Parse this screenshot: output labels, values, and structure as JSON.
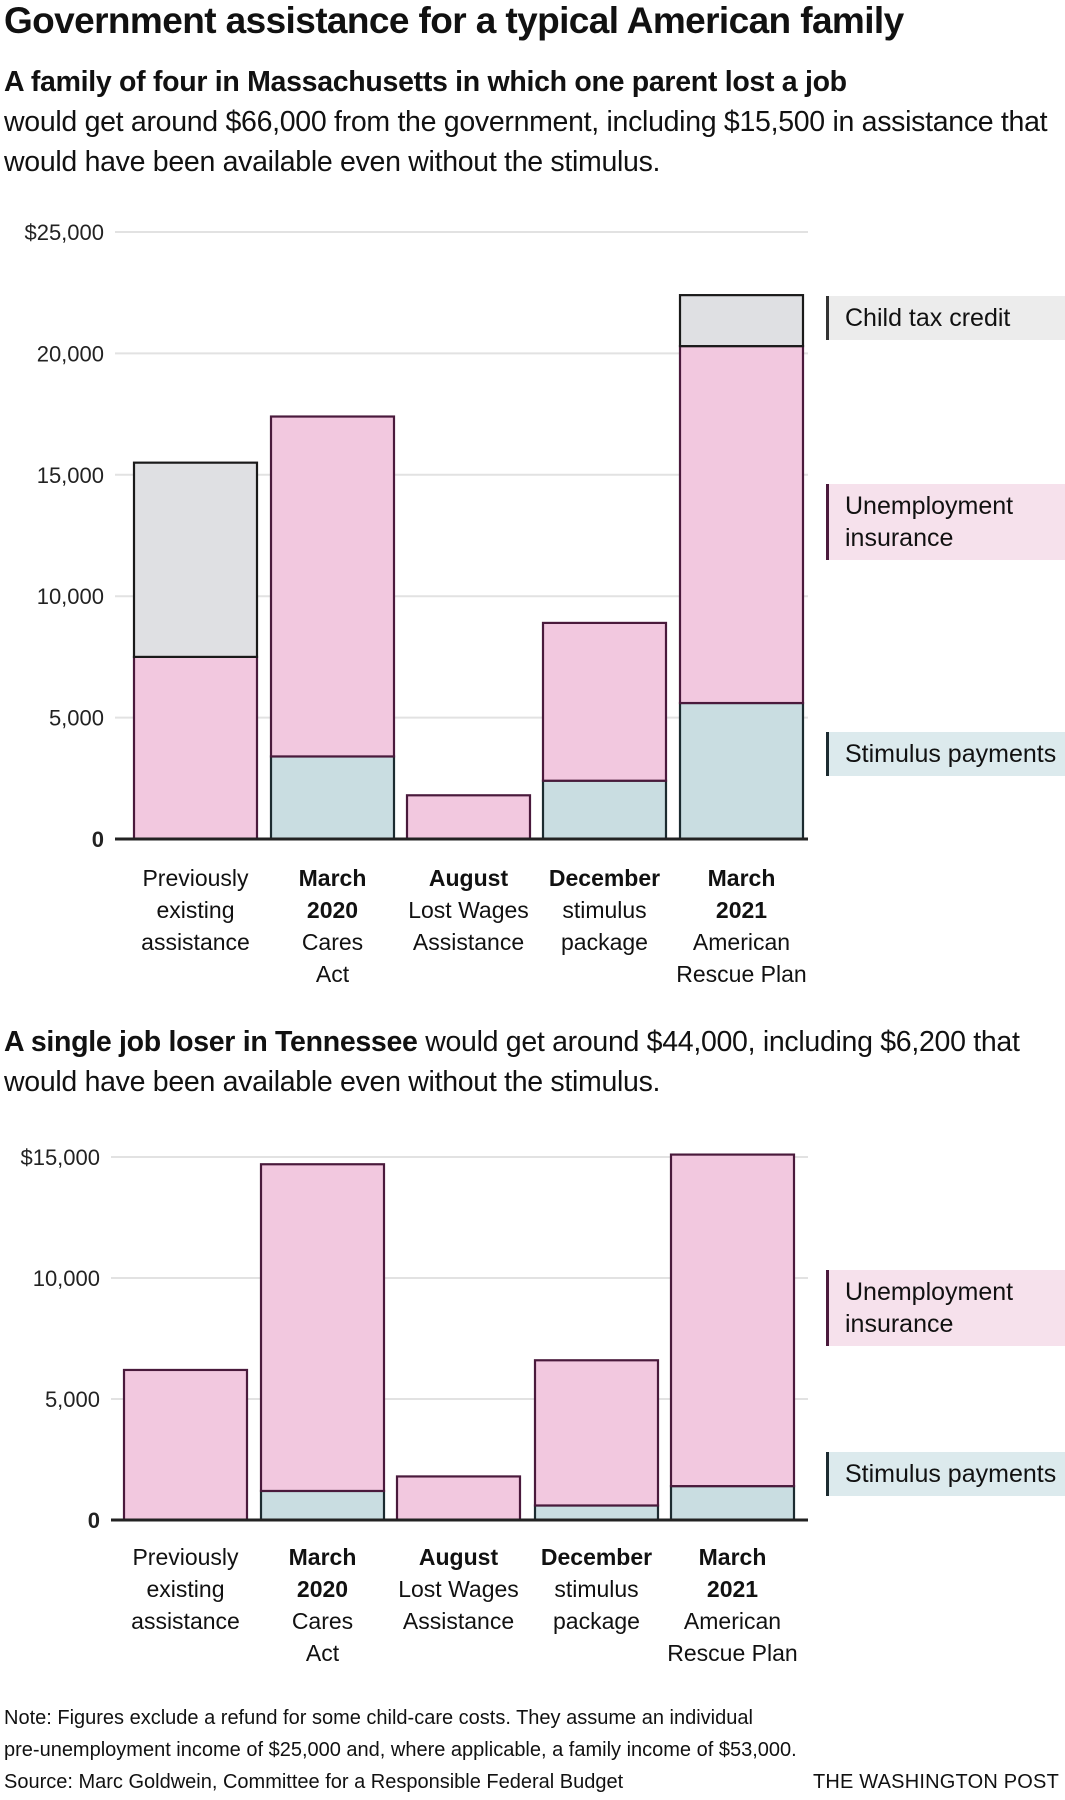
{
  "title": "Government assistance for a typical American family",
  "colors": {
    "unemployment": "#f2c8df",
    "unemployment_stroke": "#4a1a3c",
    "stimulus": "#c9dde1",
    "stimulus_stroke": "#1c2b30",
    "child_tax_credit": "#dfe0e3",
    "child_tax_credit_stroke": "#1a1a1a",
    "legend_unemployment_bg": "#f6e1ec",
    "legend_stimulus_bg": "#dceaed",
    "legend_ctc_bg": "#ececec",
    "gridline": "#e2e2e2"
  },
  "chart1": {
    "subtitle_bold": "A family of four in Massachusetts in which one parent lost a job",
    "subtitle_rest": "would get around $66,000 from the government, including $15,500 in assistance that would have been available even without the stimulus.",
    "legend": [
      {
        "key": "child_tax_credit",
        "label": "Child tax credit"
      },
      {
        "key": "unemployment",
        "label": "Unemployment insurance"
      },
      {
        "key": "stimulus",
        "label": "Stimulus payments"
      }
    ]
  },
  "chart2": {
    "subtitle_bold": "A single job loser in Tennessee",
    "subtitle_rest": " would get around $44,000, including $6,200 that would have been available even without the stimulus.",
    "legend": [
      {
        "key": "unemployment",
        "label": "Unemployment insurance"
      },
      {
        "key": "stimulus",
        "label": "Stimulus payments"
      }
    ]
  },
  "chart_data": [
    {
      "type": "bar",
      "stacked": true,
      "title": "A family of four in Massachusetts in which one parent lost a job",
      "xlabel": "",
      "ylabel": "",
      "ylim": [
        0,
        25000
      ],
      "yticks": [
        0,
        5000,
        10000,
        15000,
        20000,
        25000
      ],
      "ytick_labels": [
        "0",
        "5,000",
        "10,000",
        "15,000",
        "20,000",
        "$25,000"
      ],
      "grid": true,
      "legend_position": "right",
      "categories": [
        {
          "bold": "",
          "normal": "Previously existing assistance"
        },
        {
          "bold": "March 2020",
          "normal": "Cares Act"
        },
        {
          "bold": "August",
          "normal": "Lost Wages Assistance"
        },
        {
          "bold": "December",
          "normal": "stimulus package"
        },
        {
          "bold": "March 2021",
          "normal": "American Rescue Plan"
        }
      ],
      "category_lines": [
        [
          {
            "t": "Previously",
            "b": false
          },
          {
            "t": "existing",
            "b": false
          },
          {
            "t": "assistance",
            "b": false
          }
        ],
        [
          {
            "t": "March",
            "b": true
          },
          {
            "t": "2020",
            "b": true
          },
          {
            "t": "Cares",
            "b": false
          },
          {
            "t": "Act",
            "b": false
          }
        ],
        [
          {
            "t": "August",
            "b": true
          },
          {
            "t": "Lost Wages",
            "b": false
          },
          {
            "t": "Assistance",
            "b": false
          }
        ],
        [
          {
            "t": "December",
            "b": true
          },
          {
            "t": "stimulus",
            "b": false
          },
          {
            "t": "package",
            "b": false
          }
        ],
        [
          {
            "t": "March",
            "b": true
          },
          {
            "t": "2021",
            "b": true
          },
          {
            "t": "American",
            "b": false
          },
          {
            "t": "Rescue Plan",
            "b": false
          }
        ]
      ],
      "series": [
        {
          "name": "Stimulus payments",
          "key": "stimulus",
          "values": [
            0,
            3400,
            0,
            2400,
            5600
          ]
        },
        {
          "name": "Unemployment insurance",
          "key": "unemployment",
          "values": [
            7500,
            14000,
            1800,
            6500,
            14700
          ]
        },
        {
          "name": "Child tax credit / other",
          "key": "child_tax_credit",
          "values": [
            8000,
            0,
            0,
            0,
            2100
          ]
        }
      ]
    },
    {
      "type": "bar",
      "stacked": true,
      "title": "A single job loser in Tennessee",
      "xlabel": "",
      "ylabel": "",
      "ylim": [
        0,
        15000
      ],
      "yticks": [
        0,
        5000,
        10000,
        15000
      ],
      "ytick_labels": [
        "0",
        "5,000",
        "10,000",
        "$15,000"
      ],
      "grid": true,
      "legend_position": "right",
      "categories": [
        {
          "bold": "",
          "normal": "Previously existing assistance"
        },
        {
          "bold": "March 2020",
          "normal": "Cares Act"
        },
        {
          "bold": "August",
          "normal": "Lost Wages Assistance"
        },
        {
          "bold": "December",
          "normal": "stimulus package"
        },
        {
          "bold": "March 2021",
          "normal": "American Rescue Plan"
        }
      ],
      "category_lines": [
        [
          {
            "t": "Previously",
            "b": false
          },
          {
            "t": "existing",
            "b": false
          },
          {
            "t": "assistance",
            "b": false
          }
        ],
        [
          {
            "t": "March",
            "b": true
          },
          {
            "t": "2020",
            "b": true
          },
          {
            "t": "Cares",
            "b": false
          },
          {
            "t": "Act",
            "b": false
          }
        ],
        [
          {
            "t": "August",
            "b": true
          },
          {
            "t": "Lost Wages",
            "b": false
          },
          {
            "t": "Assistance",
            "b": false
          }
        ],
        [
          {
            "t": "December",
            "b": true
          },
          {
            "t": "stimulus",
            "b": false
          },
          {
            "t": "package",
            "b": false
          }
        ],
        [
          {
            "t": "March",
            "b": true
          },
          {
            "t": "2021",
            "b": true
          },
          {
            "t": "American",
            "b": false
          },
          {
            "t": "Rescue Plan",
            "b": false
          }
        ]
      ],
      "series": [
        {
          "name": "Stimulus payments",
          "key": "stimulus",
          "values": [
            0,
            1200,
            0,
            600,
            1400
          ]
        },
        {
          "name": "Unemployment insurance",
          "key": "unemployment",
          "values": [
            6200,
            13500,
            1800,
            6000,
            13700
          ]
        }
      ]
    }
  ],
  "footer": {
    "note_line1": "Note: Figures exclude a refund for some child-care costs. They assume an individual",
    "note_line2": "pre-unemployment income of $25,000 and, where applicable, a family income of $53,000.",
    "source": "Source: Marc Goldwein, Committee for a Responsible Federal Budget",
    "brand": "THE WASHINGTON POST"
  }
}
